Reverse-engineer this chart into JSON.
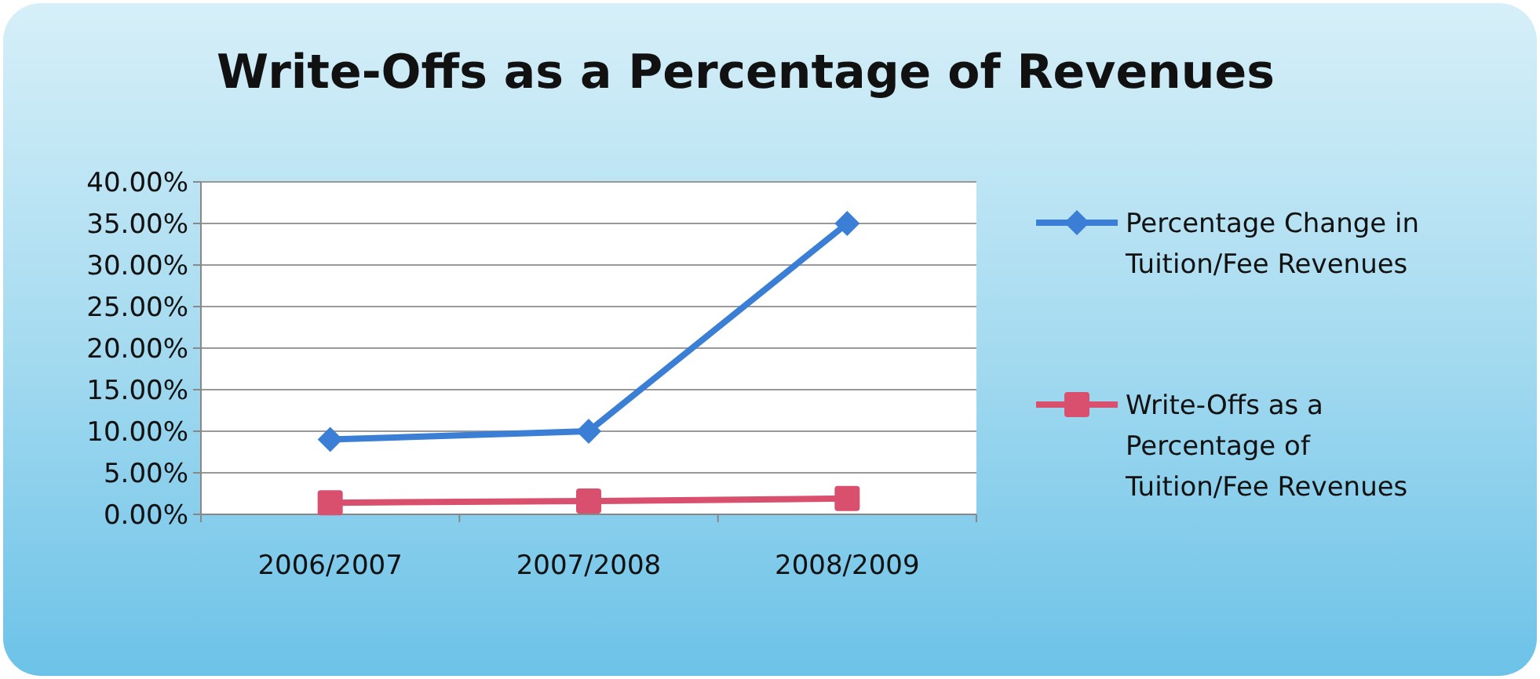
{
  "chart_data": {
    "type": "line",
    "title": "Write-Offs as a Percentage of Revenues",
    "categories": [
      "2006/2007",
      "2007/2008",
      "2008/2009"
    ],
    "series": [
      {
        "name": "Percentage Change in Tuition/Fee Revenues",
        "color": "#3a7fd5",
        "values": [
          9.0,
          10.0,
          35.0
        ],
        "marker": "diamond"
      },
      {
        "name": "Write-Offs as a Percentage of Tuition/Fee Revenues",
        "color": "#d9506e",
        "values": [
          1.4,
          1.6,
          1.9
        ],
        "marker": "square"
      }
    ],
    "ylim": [
      0,
      40
    ],
    "yticks": [
      {
        "value": 0,
        "label": "0.00%"
      },
      {
        "value": 5,
        "label": "5.00%"
      },
      {
        "value": 10,
        "label": "10.00%"
      },
      {
        "value": 15,
        "label": "15.00%"
      },
      {
        "value": 20,
        "label": "20.00%"
      },
      {
        "value": 25,
        "label": "25.00%"
      },
      {
        "value": 30,
        "label": "30.00%"
      },
      {
        "value": 35,
        "label": "35.00%"
      },
      {
        "value": 40,
        "label": "40.00%"
      }
    ],
    "grid": "y",
    "legend": "right"
  }
}
